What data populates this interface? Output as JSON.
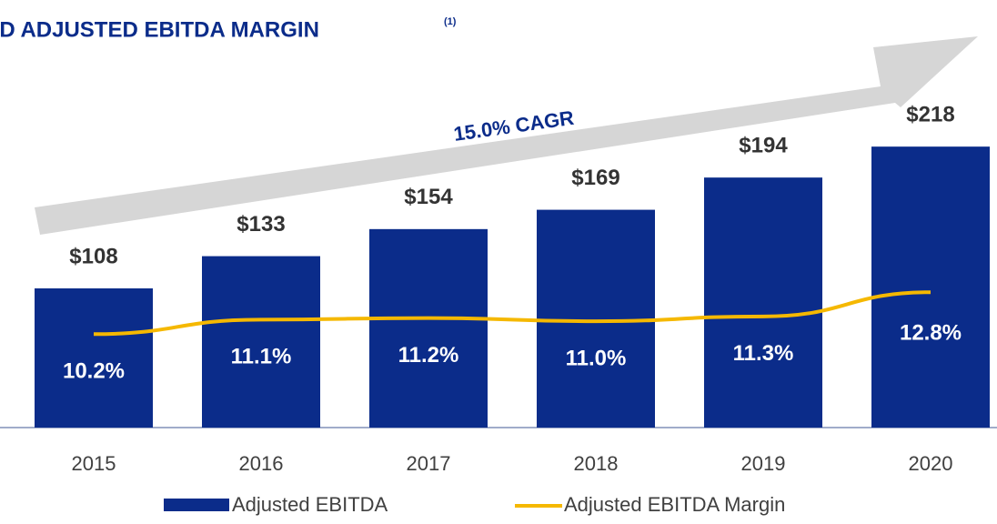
{
  "chart_data": {
    "type": "bar",
    "title": "ND ADJUSTED EBITDA MARGIN",
    "footnote_marker": "(1)",
    "annotation": "15.0% CAGR",
    "categories": [
      "2015",
      "2016",
      "2017",
      "2018",
      "2019",
      "2020"
    ],
    "series": [
      {
        "name": "Adjusted EBITDA",
        "color": "#0b2c8a",
        "values": [
          108,
          133,
          154,
          169,
          194,
          218
        ],
        "value_labels": [
          "$108",
          "$133",
          "$154",
          "$169",
          "$194",
          "$218"
        ]
      },
      {
        "name": "Adjusted EBITDA Margin",
        "color": "#f5b800",
        "type": "line",
        "axis": "y2",
        "values": [
          10.2,
          11.1,
          11.2,
          11.0,
          11.3,
          12.8
        ],
        "value_labels": [
          "10.2%",
          "11.1%",
          "11.2%",
          "11.0%",
          "11.3%",
          "12.8%"
        ]
      }
    ],
    "ylim": [
      0,
      240
    ],
    "y2lim": [
      4.4,
      23.6
    ],
    "legend": "bottom"
  }
}
